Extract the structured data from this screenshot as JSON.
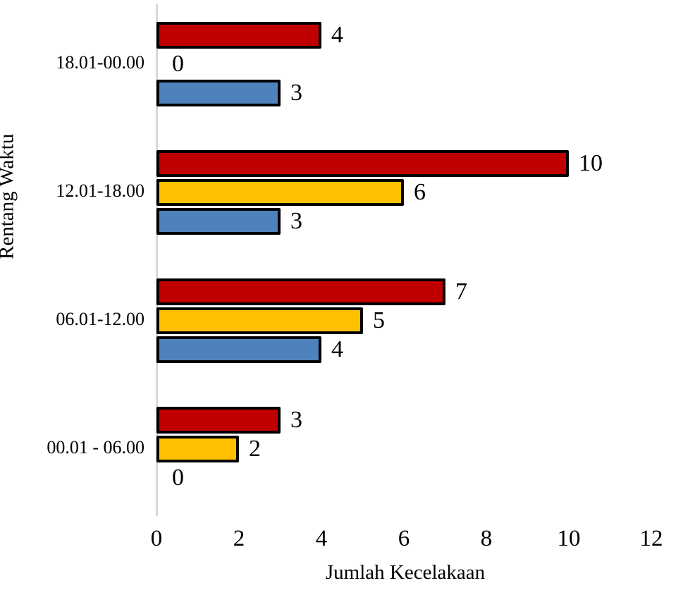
{
  "chart_data": {
    "type": "bar",
    "orientation": "horizontal",
    "title": "",
    "xlabel": "Jumlah Kecelakaan",
    "ylabel": "Rentang Waktu",
    "categories": [
      "18.01-00.00",
      "12.01-18.00",
      "06.01-12.00",
      "00.01 - 06.00"
    ],
    "series": [
      {
        "name": "series-red",
        "color": "#c00000",
        "values": [
          4,
          10,
          7,
          3
        ]
      },
      {
        "name": "series-yellow",
        "color": "#ffc000",
        "values": [
          0,
          6,
          5,
          2
        ]
      },
      {
        "name": "series-blue",
        "color": "#4f81bd",
        "values": [
          3,
          3,
          4,
          0
        ]
      }
    ],
    "xlim": [
      0,
      12
    ],
    "xticks": [
      0,
      2,
      4,
      6,
      8,
      10,
      12
    ],
    "grid": false,
    "legend": false,
    "data_labels": true,
    "bar_border_color": "#000000",
    "axis_line_color": "#d9d9d9"
  }
}
